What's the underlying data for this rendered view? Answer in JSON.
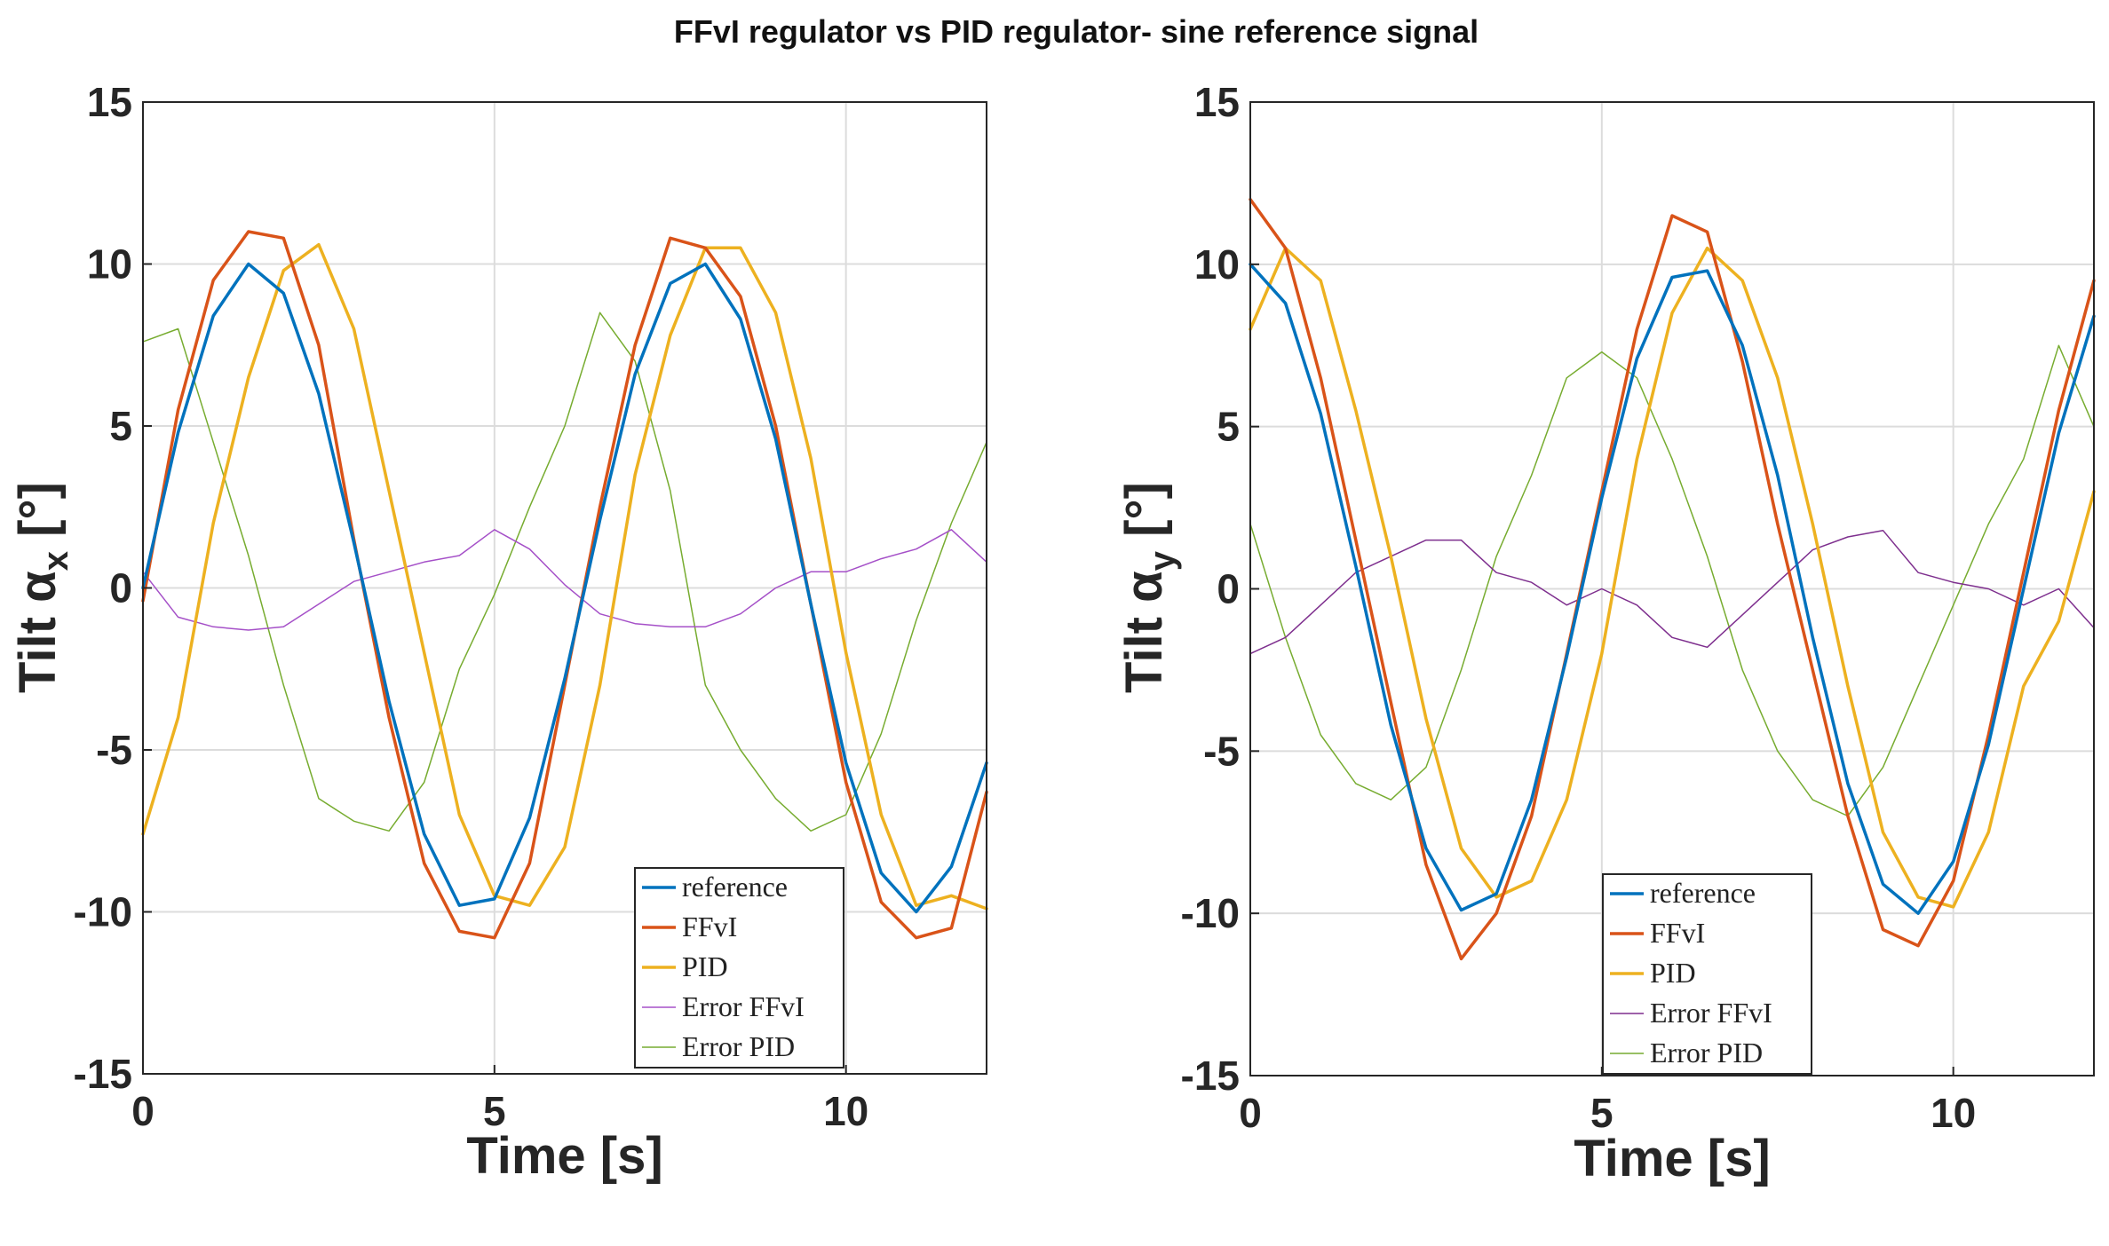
{
  "figure_title": "FFvI regulator vs PID regulator- sine reference signal",
  "chart_data": [
    {
      "type": "line",
      "xlabel": "Time [s]",
      "ylabel_main": "Tilt α",
      "ylabel_sub": "x",
      "ylabel_unit": " [°]",
      "xlim": [
        0,
        12
      ],
      "ylim": [
        -15,
        15
      ],
      "xticks": [
        0,
        5,
        10
      ],
      "yticks": [
        15,
        10,
        5,
        0,
        -5,
        -10,
        -15
      ],
      "grid": true,
      "legend_position": "bottom-right",
      "series": [
        {
          "name": "reference",
          "color": "#0072BD",
          "values_x": [
            0,
            0.5,
            1,
            1.5,
            2,
            2.5,
            3,
            3.5,
            4,
            4.5,
            5,
            5.5,
            6,
            6.5,
            7,
            7.5,
            8,
            8.5,
            9,
            9.5,
            10,
            10.5,
            11,
            11.5,
            12
          ],
          "values_y": [
            0,
            4.8,
            8.4,
            10,
            9.1,
            6,
            1.4,
            -3.5,
            -7.6,
            -9.8,
            -9.6,
            -7.1,
            -2.8,
            2.1,
            6.6,
            9.4,
            10,
            8.3,
            4.6,
            -0.5,
            -5.4,
            -8.8,
            -10,
            -8.6,
            -5.4
          ]
        },
        {
          "name": "FFvI",
          "color": "#D95319",
          "values_x": [
            0,
            0.5,
            1,
            1.5,
            2,
            2.5,
            3,
            3.5,
            4,
            4.5,
            5,
            5.5,
            6,
            6.5,
            7,
            7.5,
            8,
            8.5,
            9,
            9.5,
            10,
            10.5,
            11,
            11.5,
            12
          ],
          "values_y": [
            -0.4,
            5.5,
            9.5,
            11,
            10.8,
            7.5,
            1.5,
            -4,
            -8.5,
            -10.6,
            -10.8,
            -8.5,
            -3,
            2.5,
            7.5,
            10.8,
            10.5,
            9,
            5,
            -0.5,
            -6,
            -9.7,
            -10.8,
            -10.5,
            -6.3
          ]
        },
        {
          "name": "PID",
          "color": "#EDB120",
          "values_x": [
            0,
            0.5,
            1,
            1.5,
            2,
            2.5,
            3,
            3.5,
            4,
            4.5,
            5,
            5.5,
            6,
            6.5,
            7,
            7.5,
            8,
            8.5,
            9,
            9.5,
            10,
            10.5,
            11,
            11.5,
            12
          ],
          "values_y": [
            -7.6,
            -4,
            2,
            6.5,
            9.8,
            10.6,
            8,
            3,
            -2,
            -7,
            -9.5,
            -9.8,
            -8,
            -3,
            3.5,
            7.8,
            10.5,
            10.5,
            8.5,
            4,
            -2,
            -7,
            -9.8,
            -9.5,
            -9.9
          ]
        },
        {
          "name": "Error FFvI",
          "color": "#A550C8",
          "values_x": [
            0,
            0.5,
            1,
            1.5,
            2,
            2.5,
            3,
            3.5,
            4,
            4.5,
            5,
            5.5,
            6,
            6.5,
            7,
            7.5,
            8,
            8.5,
            9,
            9.5,
            10,
            10.5,
            11,
            11.5,
            12
          ],
          "values_y": [
            0.5,
            -0.9,
            -1.2,
            -1.3,
            -1.2,
            -0.5,
            0.2,
            0.5,
            0.8,
            1,
            1.8,
            1.2,
            0.1,
            -0.8,
            -1.1,
            -1.2,
            -1.2,
            -0.8,
            0,
            0.5,
            0.5,
            0.9,
            1.2,
            1.8,
            0.8
          ]
        },
        {
          "name": "Error PID",
          "color": "#77AC30",
          "values_x": [
            0,
            0.5,
            1,
            1.5,
            2,
            2.5,
            3,
            3.5,
            4,
            4.5,
            5,
            5.5,
            6,
            6.5,
            7,
            7.5,
            8,
            8.5,
            9,
            9.5,
            10,
            10.5,
            11,
            11.5,
            12
          ],
          "values_y": [
            7.6,
            8,
            4.5,
            1,
            -3,
            -6.5,
            -7.2,
            -7.5,
            -6,
            -2.5,
            -0.2,
            2.5,
            5,
            8.5,
            7,
            3,
            -3,
            -5,
            -6.5,
            -7.5,
            -7,
            -4.5,
            -1,
            2,
            4.5
          ]
        }
      ]
    },
    {
      "type": "line",
      "xlabel": "Time [s]",
      "ylabel_main": "Tilt α",
      "ylabel_sub": "y",
      "ylabel_unit": " [°]",
      "xlim": [
        0,
        12
      ],
      "ylim": [
        -15,
        15
      ],
      "xticks": [
        0,
        5,
        10
      ],
      "yticks": [
        15,
        10,
        5,
        0,
        -5,
        -10,
        -15
      ],
      "grid": true,
      "legend_position": "bottom-right",
      "series": [
        {
          "name": "reference",
          "color": "#0072BD",
          "values_x": [
            0,
            0.5,
            1,
            1.5,
            2,
            2.5,
            3,
            3.5,
            4,
            4.5,
            5,
            5.5,
            6,
            6.5,
            7,
            7.5,
            8,
            8.5,
            9,
            9.5,
            10,
            10.5,
            11,
            11.5,
            12
          ],
          "values_y": [
            10,
            8.8,
            5.4,
            0.7,
            -4.2,
            -8,
            -9.9,
            -9.4,
            -6.5,
            -2.1,
            2.8,
            7.1,
            9.6,
            9.8,
            7.5,
            3.5,
            -1.5,
            -6,
            -9.1,
            -10,
            -8.4,
            -4.8,
            0,
            4.8,
            8.4
          ]
        },
        {
          "name": "FFvI",
          "color": "#D95319",
          "values_x": [
            0,
            0.5,
            1,
            1.5,
            2,
            2.5,
            3,
            3.5,
            4,
            4.5,
            5,
            5.5,
            6,
            6.5,
            7,
            7.5,
            8,
            8.5,
            9,
            9.5,
            10,
            10.5,
            11,
            11.5,
            12
          ],
          "values_y": [
            12,
            10.5,
            6.5,
            1.5,
            -3.5,
            -8.5,
            -11.4,
            -10,
            -7,
            -2,
            3,
            8,
            11.5,
            11,
            7,
            2,
            -2.5,
            -7,
            -10.5,
            -11,
            -9,
            -4.5,
            0.5,
            5.5,
            9.5
          ]
        },
        {
          "name": "PID",
          "color": "#EDB120",
          "values_x": [
            0,
            0.5,
            1,
            1.5,
            2,
            2.5,
            3,
            3.5,
            4,
            4.5,
            5,
            5.5,
            6,
            6.5,
            7,
            7.5,
            8,
            8.5,
            9,
            9.5,
            10,
            10.5,
            11,
            11.5,
            12
          ],
          "values_y": [
            8,
            10.5,
            9.5,
            5.5,
            1,
            -4,
            -8,
            -9.5,
            -9,
            -6.5,
            -2,
            4,
            8.5,
            10.5,
            9.5,
            6.5,
            2,
            -3,
            -7.5,
            -9.5,
            -9.8,
            -7.5,
            -3,
            -1,
            3
          ]
        },
        {
          "name": "Error FFvI",
          "color": "#7E2F8E",
          "values_x": [
            0,
            0.5,
            1,
            1.5,
            2,
            2.5,
            3,
            3.5,
            4,
            4.5,
            5,
            5.5,
            6,
            6.5,
            7,
            7.5,
            8,
            8.5,
            9,
            9.5,
            10,
            10.5,
            11,
            11.5,
            12
          ],
          "values_y": [
            -2,
            -1.5,
            -0.5,
            0.5,
            1,
            1.5,
            1.5,
            0.5,
            0.2,
            -0.5,
            0,
            -0.5,
            -1.5,
            -1.8,
            -0.8,
            0.2,
            1.2,
            1.6,
            1.8,
            0.5,
            0.2,
            0,
            -0.5,
            0,
            -1.2
          ]
        },
        {
          "name": "Error PID",
          "color": "#77AC30",
          "values_x": [
            0,
            0.5,
            1,
            1.5,
            2,
            2.5,
            3,
            3.5,
            4,
            4.5,
            5,
            5.5,
            6,
            6.5,
            7,
            7.5,
            8,
            8.5,
            9,
            9.5,
            10,
            10.5,
            11,
            11.5,
            12
          ],
          "values_y": [
            2,
            -1.5,
            -4.5,
            -6,
            -6.5,
            -5.5,
            -2.5,
            1,
            3.5,
            6.5,
            7.3,
            6.5,
            4,
            1,
            -2.5,
            -5,
            -6.5,
            -7,
            -5.5,
            -3,
            -0.5,
            2,
            4,
            7.5,
            5
          ]
        }
      ]
    }
  ]
}
